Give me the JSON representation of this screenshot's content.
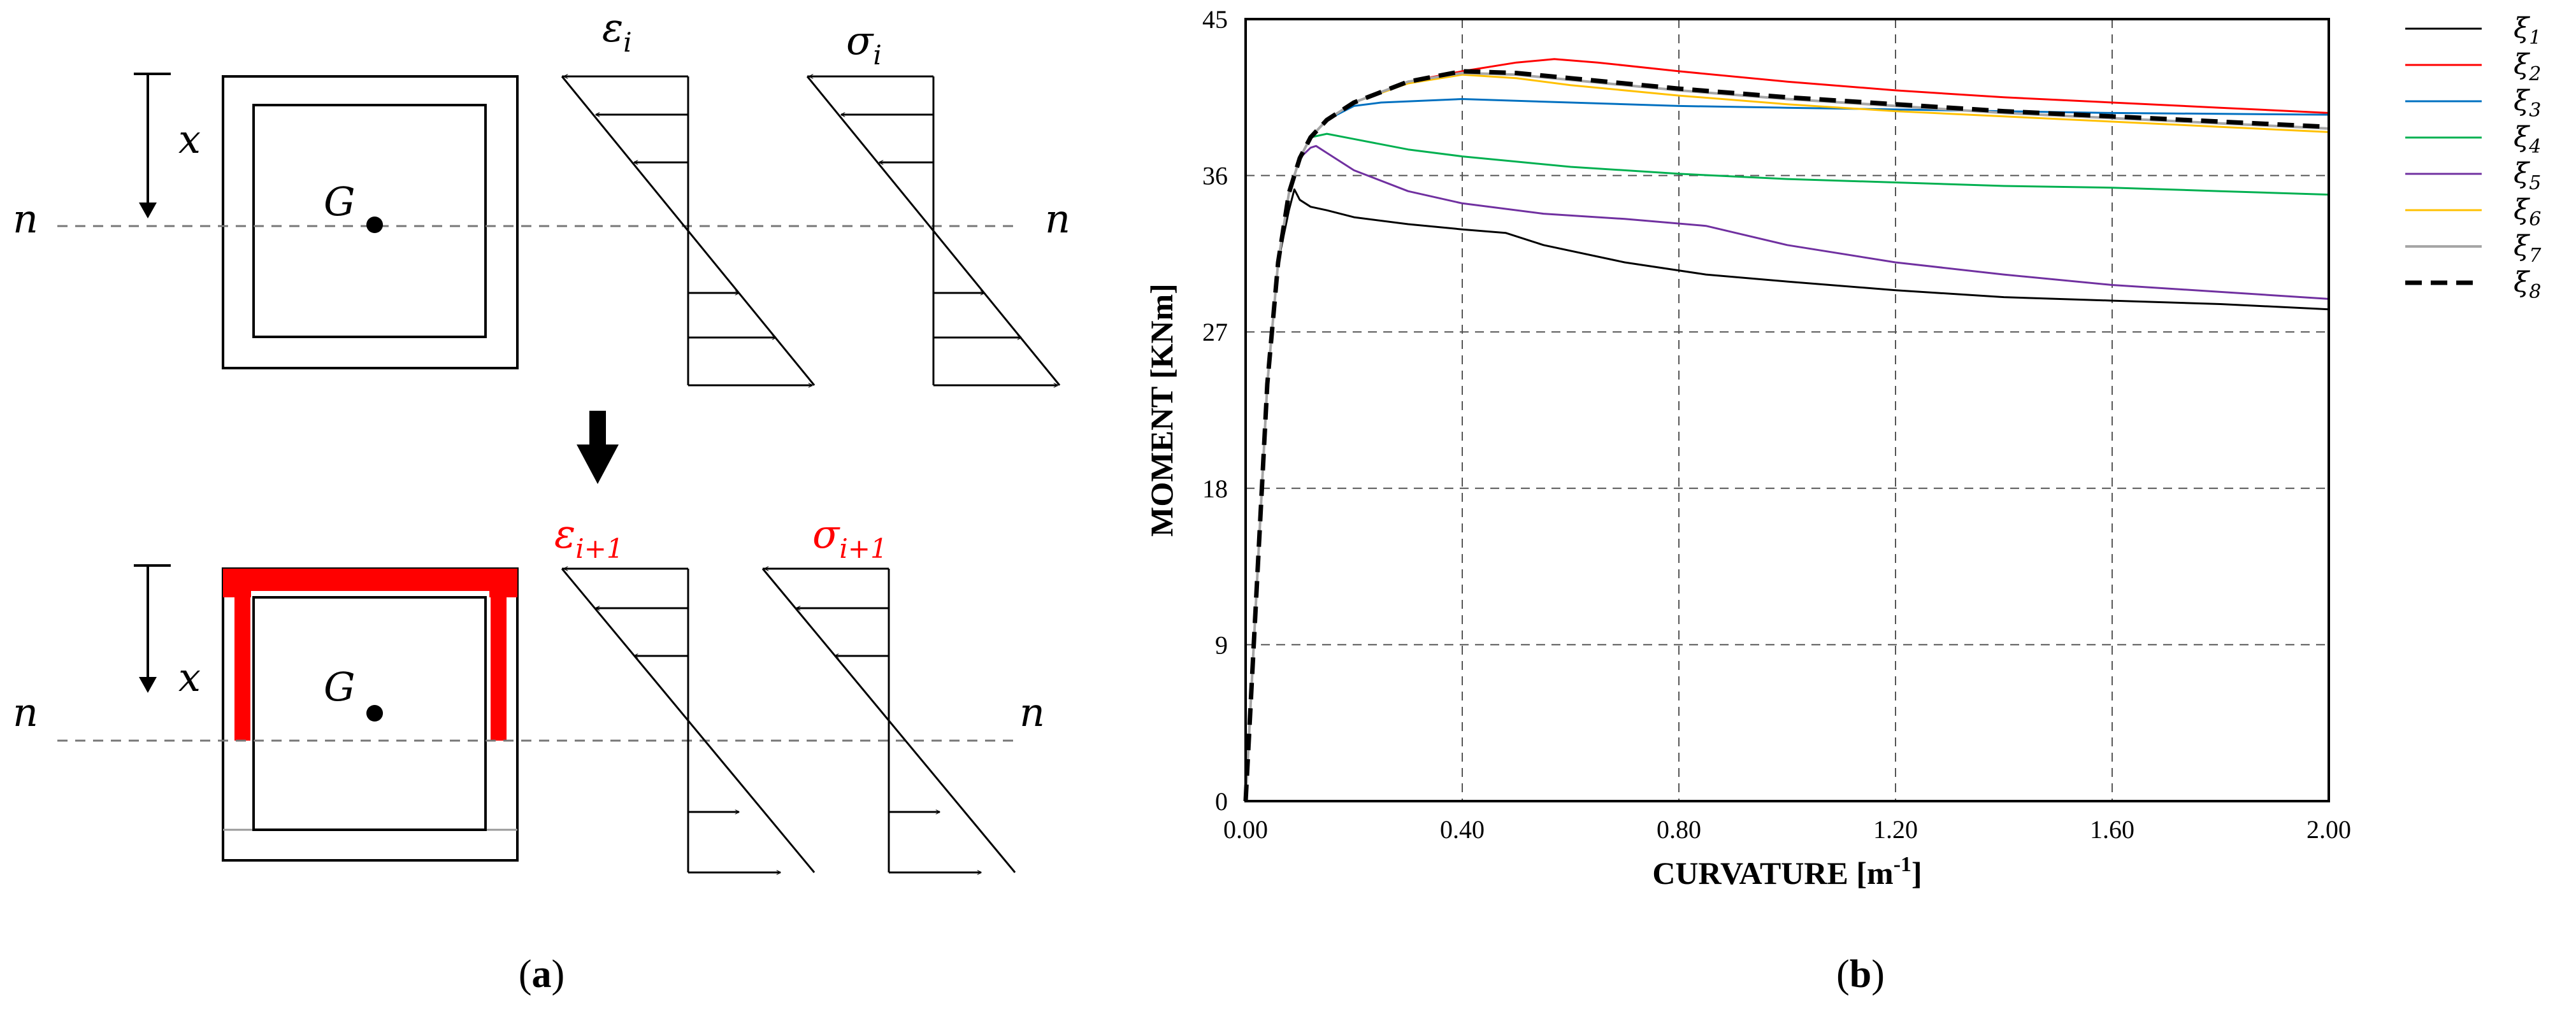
{
  "panel_a": {
    "label_open": "(",
    "label_letter": "a",
    "label_close": ")",
    "neutral_axis_left": "n",
    "neutral_axis_right": "n",
    "depth_symbol": "x",
    "centroid": "G",
    "strain_top": "ε",
    "strain_top_sub": "i",
    "stress_top": "σ",
    "stress_top_sub": "i",
    "strain_bottom": "ε",
    "strain_bottom_sub": "i+1",
    "stress_bottom": "σ",
    "stress_bottom_sub": "i+1",
    "highlight_color": "#ff0000"
  },
  "panel_b": {
    "label_open": "(",
    "label_letter": "b",
    "label_close": ")"
  },
  "chart_data": {
    "type": "line",
    "title": "",
    "xlabel": "CURVATURE [m",
    "xlabel_sup": "-1",
    "xlabel_end": "]",
    "ylabel": "MOMENT [KNm]",
    "xlim": [
      0,
      2.0
    ],
    "ylim": [
      0,
      45
    ],
    "xticks": [
      0,
      0.4,
      0.8,
      1.2,
      1.6,
      2.0
    ],
    "xtick_labels": [
      "0.00",
      "0.40",
      "0.80",
      "1.20",
      "1.60",
      "2.00"
    ],
    "yticks": [
      0,
      9,
      18,
      27,
      36,
      45
    ],
    "ytick_labels": [
      "0",
      "9",
      "18",
      "27",
      "36",
      "45"
    ],
    "grid": true,
    "legend_position": "right",
    "series": [
      {
        "name": "ξ",
        "sub": "1",
        "color": "#000000",
        "dash": false,
        "width": 3,
        "x": [
          0,
          0.02,
          0.04,
          0.06,
          0.08,
          0.09,
          0.1,
          0.12,
          0.15,
          0.2,
          0.3,
          0.4,
          0.48,
          0.55,
          0.7,
          0.85,
          1.0,
          1.2,
          1.4,
          1.6,
          1.8,
          2.0
        ],
        "y": [
          0,
          12,
          24,
          31,
          34,
          35.2,
          34.6,
          34.2,
          34.0,
          33.6,
          33.2,
          32.9,
          32.7,
          32.0,
          31.0,
          30.3,
          29.9,
          29.4,
          29.0,
          28.8,
          28.6,
          28.3
        ]
      },
      {
        "name": "ξ",
        "sub": "2",
        "color": "#ff0000",
        "dash": false,
        "width": 3,
        "x": [
          0,
          0.02,
          0.04,
          0.06,
          0.08,
          0.1,
          0.12,
          0.15,
          0.2,
          0.3,
          0.4,
          0.5,
          0.57,
          0.65,
          0.8,
          1.0,
          1.2,
          1.4,
          1.6,
          1.8,
          2.0
        ],
        "y": [
          0,
          12,
          24,
          31,
          35,
          37,
          38.2,
          39.2,
          40.2,
          41.4,
          42.0,
          42.5,
          42.7,
          42.5,
          42.0,
          41.4,
          40.9,
          40.5,
          40.2,
          39.9,
          39.6
        ]
      },
      {
        "name": "ξ",
        "sub": "3",
        "color": "#0070c0",
        "dash": false,
        "width": 3,
        "x": [
          0,
          0.02,
          0.04,
          0.06,
          0.08,
          0.1,
          0.12,
          0.15,
          0.2,
          0.25,
          0.4,
          0.6,
          0.8,
          1.0,
          1.2,
          1.6,
          2.0
        ],
        "y": [
          0,
          12,
          24,
          31,
          35,
          37,
          38.2,
          39.2,
          40.0,
          40.2,
          40.4,
          40.2,
          40.0,
          39.9,
          39.8,
          39.6,
          39.5
        ]
      },
      {
        "name": "ξ",
        "sub": "4",
        "color": "#00b050",
        "dash": false,
        "width": 3,
        "x": [
          0,
          0.02,
          0.04,
          0.06,
          0.08,
          0.1,
          0.12,
          0.15,
          0.2,
          0.3,
          0.4,
          0.6,
          0.8,
          1.0,
          1.2,
          1.4,
          1.6,
          1.8,
          2.0
        ],
        "y": [
          0,
          12,
          24,
          31,
          35,
          37,
          38.2,
          38.4,
          38.1,
          37.5,
          37.1,
          36.5,
          36.1,
          35.8,
          35.6,
          35.4,
          35.3,
          35.1,
          34.9
        ]
      },
      {
        "name": "ξ",
        "sub": "5",
        "color": "#7030a0",
        "dash": false,
        "width": 3,
        "x": [
          0,
          0.02,
          0.04,
          0.06,
          0.08,
          0.1,
          0.12,
          0.13,
          0.15,
          0.2,
          0.3,
          0.4,
          0.55,
          0.7,
          0.85,
          1.0,
          1.2,
          1.4,
          1.6,
          1.8,
          2.0
        ],
        "y": [
          0,
          12,
          24,
          31,
          35,
          37,
          37.6,
          37.7,
          37.3,
          36.3,
          35.1,
          34.4,
          33.8,
          33.5,
          33.1,
          32.0,
          31.0,
          30.3,
          29.7,
          29.3,
          28.9
        ]
      },
      {
        "name": "ξ",
        "sub": "6",
        "color": "#ffc000",
        "dash": false,
        "width": 3,
        "x": [
          0,
          0.02,
          0.04,
          0.06,
          0.08,
          0.1,
          0.12,
          0.15,
          0.2,
          0.3,
          0.4,
          0.5,
          0.6,
          0.8,
          1.0,
          1.2,
          1.4,
          1.6,
          1.8,
          2.0
        ],
        "y": [
          0,
          12,
          24,
          31,
          35,
          37,
          38.2,
          39.2,
          40.2,
          41.3,
          41.8,
          41.6,
          41.2,
          40.6,
          40.1,
          39.7,
          39.4,
          39.1,
          38.8,
          38.5
        ]
      },
      {
        "name": "ξ",
        "sub": "7",
        "color": "#a6a6a6",
        "dash": false,
        "width": 4,
        "x": [
          0,
          0.02,
          0.04,
          0.06,
          0.08,
          0.1,
          0.12,
          0.15,
          0.2,
          0.3,
          0.4,
          0.5,
          0.6,
          0.8,
          1.0,
          1.2,
          1.4,
          1.6,
          1.8,
          2.0
        ],
        "y": [
          0,
          12,
          24,
          31,
          35,
          37,
          38.2,
          39.2,
          40.2,
          41.4,
          41.9,
          41.8,
          41.5,
          40.9,
          40.4,
          40.0,
          39.6,
          39.3,
          39.0,
          38.7
        ]
      },
      {
        "name": "ξ",
        "sub": "8",
        "color": "#000000",
        "dash": true,
        "width": 7,
        "x": [
          0,
          0.02,
          0.04,
          0.06,
          0.08,
          0.1,
          0.12,
          0.15,
          0.2,
          0.3,
          0.4,
          0.5,
          0.6,
          0.8,
          1.0,
          1.2,
          1.4,
          1.6,
          1.8,
          2.0
        ],
        "y": [
          0,
          12,
          24,
          31,
          35,
          37,
          38.2,
          39.2,
          40.2,
          41.4,
          42.0,
          41.9,
          41.6,
          41.0,
          40.5,
          40.1,
          39.7,
          39.4,
          39.1,
          38.8
        ]
      }
    ]
  }
}
